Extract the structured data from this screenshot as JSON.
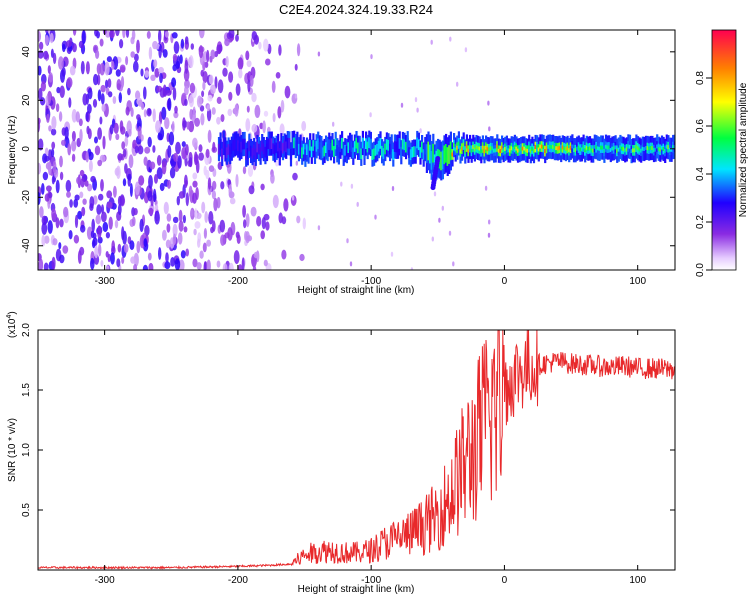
{
  "figure_title": "C2E4.2024.324.19.33.R24",
  "chart_data": [
    {
      "type": "heatmap",
      "title": "C2E4.2024.324.19.33.R24",
      "xlabel": "Height of straight line (km)",
      "ylabel": "Frequency (Hz)",
      "xlim": [
        -350,
        128
      ],
      "ylim": [
        -50,
        49
      ],
      "x_ticks": [
        -300,
        -200,
        -100,
        0,
        100
      ],
      "x_tick_labels": [
        "-300",
        "-200",
        "-100",
        "0",
        "100"
      ],
      "y_ticks": [
        -40,
        -20,
        0,
        20,
        40
      ],
      "y_tick_labels": [
        "-40",
        "-20",
        "0",
        "20",
        "40"
      ],
      "colorbar": {
        "label": "Normalized spectral amplitude",
        "range": [
          0,
          1
        ],
        "ticks": [
          0.0,
          0.2,
          0.4,
          0.6,
          0.8
        ],
        "tick_labels": [
          "0.0",
          "0.2",
          "0.4",
          "0.6",
          "0.8"
        ],
        "colormap": [
          "#ffffff",
          "#8a2be2",
          "#0000ff",
          "#00ffff",
          "#00ff00",
          "#ffff00",
          "#ff0000"
        ]
      },
      "description_of_data": "Broadband noise (amplitude ~0.1-0.3) over all frequencies for heights -350 to about -160 km; narrow band centred on 0 Hz (about +/-4 Hz) from about -215 km to 128 km with amplitude rising to 0.7-0.9 near -50 to +50 km; a dip toward -15 Hz near -50 km.",
      "noise_region_km": [
        -350,
        -160
      ],
      "band_region_km": [
        -215,
        128
      ],
      "band_center_hz": 0,
      "band_halfwidth_hz": 4
    },
    {
      "type": "line",
      "xlabel": "Height of straight line (km)",
      "ylabel": "SNR (10 * v/v)",
      "y_multiplier_label": "(x10",
      "y_multiplier_exp": "4",
      "y_multiplier_close": ")",
      "xlim": [
        -350,
        128
      ],
      "ylim": [
        0,
        2.0
      ],
      "x_ticks": [
        -300,
        -200,
        -100,
        0,
        100
      ],
      "x_tick_labels": [
        "-300",
        "-200",
        "-100",
        "0",
        "100"
      ],
      "y_ticks": [
        0.5,
        1.0,
        1.5,
        2.0
      ],
      "y_tick_labels": [
        "0.5",
        "1.0",
        "1.5",
        "2.0"
      ],
      "series": [
        {
          "name": "SNR",
          "color": "#e8292b",
          "x": [
            -350,
            -300,
            -250,
            -200,
            -175,
            -160,
            -150,
            -140,
            -130,
            -120,
            -110,
            -100,
            -90,
            -80,
            -70,
            -60,
            -50,
            -40,
            -30,
            -20,
            -10,
            -5,
            0,
            10,
            20,
            30,
            40,
            50,
            60,
            70,
            80,
            90,
            100,
            110,
            128
          ],
          "values": [
            0.02,
            0.02,
            0.02,
            0.03,
            0.04,
            0.05,
            0.12,
            0.15,
            0.16,
            0.14,
            0.14,
            0.16,
            0.22,
            0.26,
            0.3,
            0.36,
            0.45,
            0.62,
            0.85,
            1.05,
            1.3,
            1.4,
            1.52,
            1.65,
            1.7,
            1.72,
            1.74,
            1.72,
            1.71,
            1.7,
            1.69,
            1.7,
            1.68,
            1.68,
            1.67
          ]
        }
      ]
    }
  ]
}
